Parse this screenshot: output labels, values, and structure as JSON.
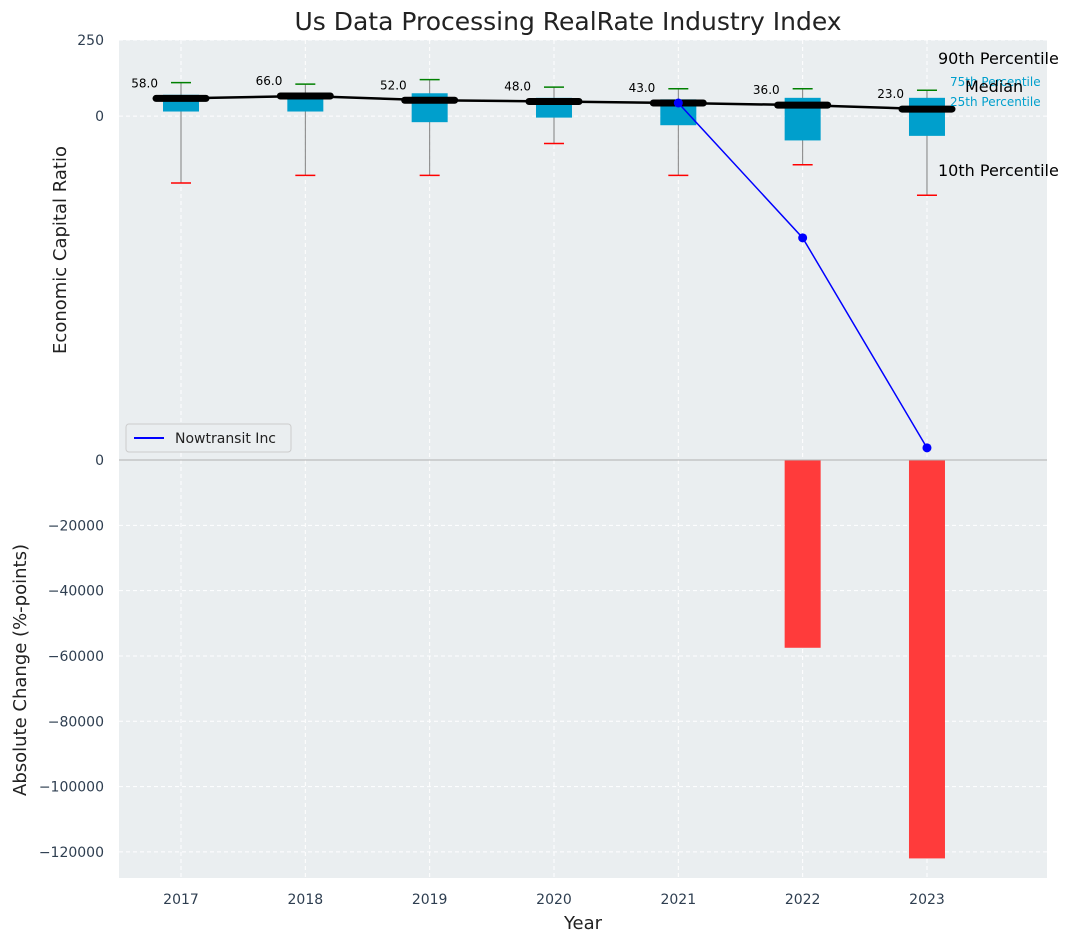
{
  "chart_data": [
    {
      "type": "box",
      "title": "Us Data Processing RealRate Industry Index",
      "ylabel": "Economic Capital Ratio",
      "ylim": [
        -1130,
        250
      ],
      "yticks": [
        "250",
        "0"
      ],
      "categories": [
        "2017",
        "2018",
        "2019",
        "2020",
        "2021",
        "2022",
        "2023"
      ],
      "median_values": [
        58,
        66,
        52,
        48,
        43,
        36,
        23
      ],
      "median_labels": [
        "58.0",
        "66.0",
        "52.0",
        "48.0",
        "43.0",
        "36.0",
        "23.0"
      ],
      "p10": [
        -220,
        -195,
        -195,
        -90,
        -195,
        -160,
        -260
      ],
      "p25": [
        15,
        15,
        -20,
        -5,
        -30,
        -80,
        -65
      ],
      "p75": [
        70,
        70,
        75,
        60,
        55,
        60,
        60
      ],
      "p90": [
        110,
        105,
        120,
        95,
        90,
        90,
        85
      ],
      "series": [
        {
          "name": "Nowtransit Inc",
          "x": [
            "2021",
            "2022",
            "2023"
          ],
          "values": [
            43,
            -400,
            -1090
          ]
        }
      ],
      "annotations": {
        "p90": "90th Percentile",
        "p75": "75th Percentile",
        "median": "Median",
        "p25": "25th Percentile",
        "p10": "10th Percentile"
      },
      "legend_placement": "lower-left",
      "grid": true,
      "colors": {
        "box": "#009fcc",
        "median": "#000000",
        "company": "#0000ff",
        "whisker_top": "#008000",
        "whisker_bottom": "#ff0000",
        "background": "#eaeef0"
      }
    },
    {
      "type": "bar",
      "xlabel": "Year",
      "ylabel": "Absolute Change (%-points)",
      "ylim": [
        -128000,
        0
      ],
      "yticks": [
        "0",
        "−20000",
        "−40000",
        "−60000",
        "−80000",
        "−100000",
        "−120000"
      ],
      "categories": [
        "2017",
        "2018",
        "2019",
        "2020",
        "2021",
        "2022",
        "2023"
      ],
      "values": [
        0,
        0,
        0,
        0,
        0,
        -57500,
        -122000
      ],
      "colors": {
        "bar": "#ff3b3b"
      }
    }
  ]
}
